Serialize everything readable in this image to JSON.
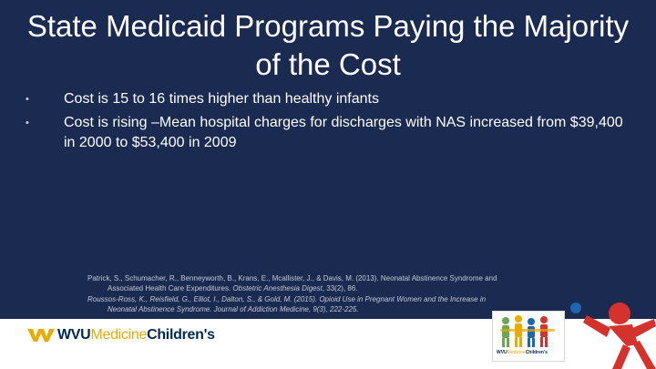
{
  "slide": {
    "title": "State Medicaid Programs Paying the Majority of the Cost",
    "bullets": [
      "Cost is 15 to 16 times higher than healthy infants",
      "Cost is rising –Mean hospital charges for discharges with NAS increased from  $39,400 in 2000 to $53,400 in 2009"
    ],
    "bullet_symbol": "•",
    "references": [
      {
        "text": "Patrick, S., Schumacher, R., Benneyworth, B., Krans, E., Mcallister, J., & Davis, M. (2013). Neonatal Abstinence Syndrome and",
        "cont": "Associated Health Care Expenditures. ",
        "journal": "Obstetric Anesthesia Digest",
        "tail": ", 33(2), 86."
      },
      {
        "text": "Roussos-Ross, K., Reisfield, G., Elliot, I., Dalton, S., & Gold, M. (2015). Opioid Use in Pregnant Women and the Increase in",
        "cont_italic": "Neonatal Abstinence Syndrome. Journal of Addiction Medicine",
        "tail": ", 9(3), 222-225."
      }
    ]
  },
  "footer": {
    "logo": {
      "wvu": "WVU",
      "medicine": "Medicine",
      "childrens": "Children's"
    },
    "badge": {
      "wvu": "WVU",
      "medicine": "Medicine",
      "childrens": "Children's"
    }
  },
  "colors": {
    "background": "#1a2a50",
    "text": "#ffffff",
    "navy": "#002855",
    "gold": "#eaaa00",
    "red": "#d4322c",
    "blue": "#1d66b0",
    "green": "#6aa84f"
  }
}
